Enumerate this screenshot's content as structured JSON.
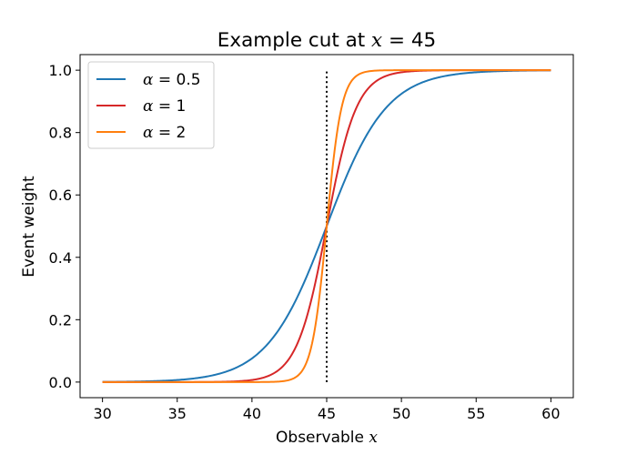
{
  "chart_data": {
    "type": "line",
    "title_prefix": "Example cut at ",
    "title_var": "x",
    "title_suffix": " = 45",
    "xlabel_text": "Observable ",
    "xlabel_var": "x",
    "ylabel": "Event weight",
    "xlim": [
      28.5,
      61.5
    ],
    "ylim": [
      -0.05,
      1.05
    ],
    "xticks": [
      30,
      35,
      40,
      45,
      50,
      55,
      60
    ],
    "yticks": [
      0.0,
      0.2,
      0.4,
      0.6,
      0.8,
      1.0
    ],
    "xtick_labels": [
      "30",
      "35",
      "40",
      "45",
      "50",
      "55",
      "60"
    ],
    "ytick_labels": [
      "0.0",
      "0.2",
      "0.4",
      "0.6",
      "0.8",
      "1.0"
    ],
    "grid": false,
    "legend_position": "top-left",
    "cut_line": {
      "x": 45,
      "y_from": 0,
      "y_to": 1,
      "style": "dotted",
      "color": "#000000"
    },
    "x_range": [
      30,
      60
    ],
    "series": [
      {
        "legend_var": "α",
        "legend_value": " = 0.5",
        "alpha": 0.5,
        "color": "#1f77b4"
      },
      {
        "legend_var": "α",
        "legend_value": " = 1",
        "alpha": 1,
        "color": "#d62728"
      },
      {
        "legend_var": "α",
        "legend_value": " = 2",
        "alpha": 2,
        "color": "#ff7f0e"
      }
    ]
  }
}
